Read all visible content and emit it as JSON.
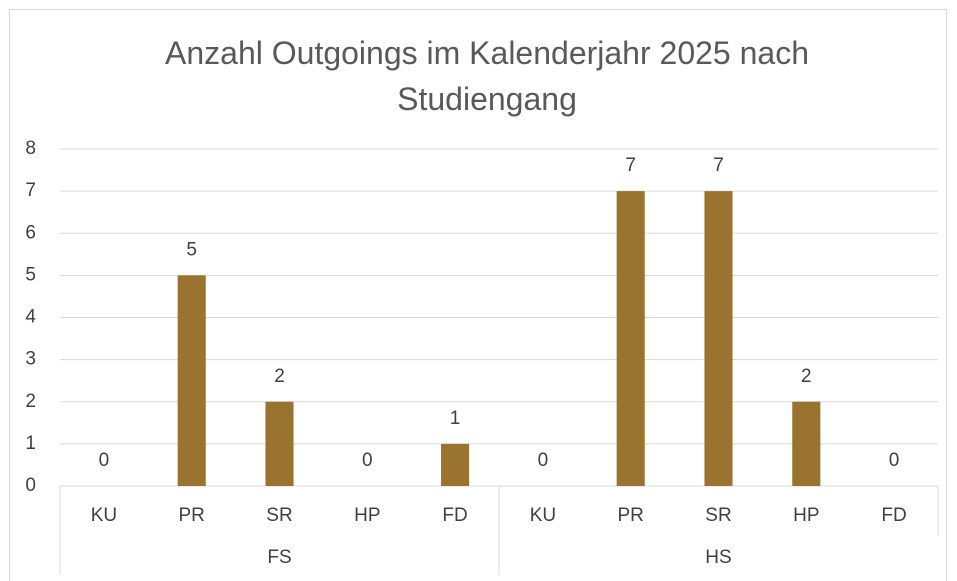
{
  "chart_data": {
    "type": "bar",
    "title": "Anzahl Outgoings im Kalenderjahr 2025 nach Studiengang",
    "groups": [
      {
        "name": "FS",
        "categories": [
          "KU",
          "PR",
          "SR",
          "HP",
          "FD"
        ],
        "values": [
          0,
          5,
          2,
          0,
          1
        ]
      },
      {
        "name": "HS",
        "categories": [
          "KU",
          "PR",
          "SR",
          "HP",
          "FD"
        ],
        "values": [
          0,
          7,
          7,
          2,
          0
        ]
      }
    ],
    "color": "#9b7331",
    "ylim": [
      0,
      8
    ],
    "yticks": [
      0,
      1,
      2,
      3,
      4,
      5,
      6,
      7,
      8
    ],
    "grid": true
  }
}
